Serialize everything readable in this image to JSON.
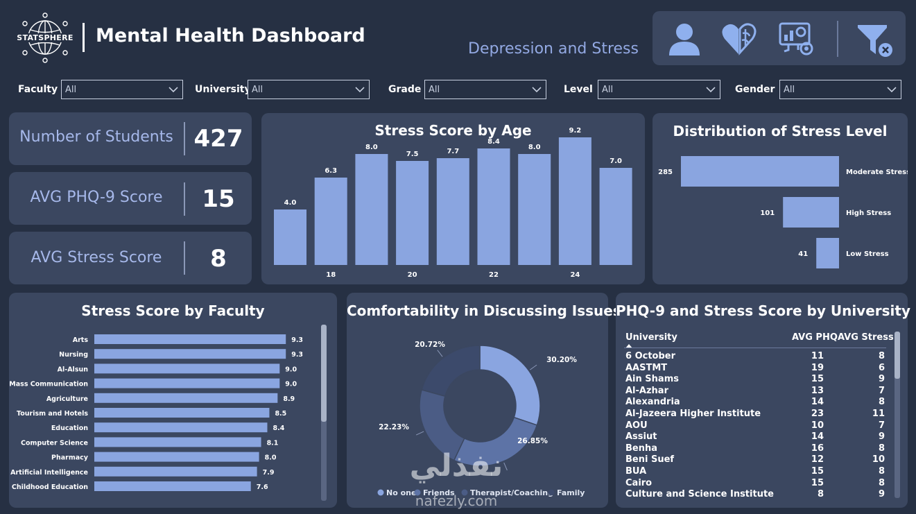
{
  "header": {
    "logo_text": "STATSPHERE",
    "title": "Mental Health Dashboard",
    "subtitle": "Depression and Stress",
    "nav": [
      {
        "icon": "user-icon"
      },
      {
        "icon": "heart-brain-icon"
      },
      {
        "icon": "analytics-monitor-icon"
      },
      {
        "icon": "clear-filter-icon"
      }
    ]
  },
  "filters": [
    {
      "label": "Faculty",
      "value": "All"
    },
    {
      "label": "University",
      "value": "All"
    },
    {
      "label": "Grade",
      "value": "All"
    },
    {
      "label": "Level",
      "value": "All"
    },
    {
      "label": "Gender",
      "value": "All"
    }
  ],
  "kpis": [
    {
      "label": "Number of Students",
      "value": "427"
    },
    {
      "label": "AVG PHQ-9 Score",
      "value": "15"
    },
    {
      "label": "AVG Stress Score",
      "value": "8"
    }
  ],
  "colors": {
    "background": "#263043",
    "card": "#3b4760",
    "bar": "#8aa5e0",
    "accent_text": "#93a9e3",
    "donut": [
      "#8aa5e0",
      "#5d73a6",
      "#4b5c85",
      "#3c4a6b"
    ]
  },
  "chart_data": [
    {
      "type": "bar",
      "title": "Stress Score by Age",
      "categories": [
        "17",
        "18",
        "19",
        "20",
        "21",
        "22",
        "23",
        "24",
        "25"
      ],
      "tick_labels": [
        "",
        "18",
        "",
        "20",
        "",
        "22",
        "",
        "24",
        ""
      ],
      "values": [
        4.0,
        6.3,
        8.0,
        7.5,
        7.7,
        8.4,
        8.0,
        9.2,
        7.0
      ],
      "data_labels": [
        "4.0",
        "6.3",
        "8.0",
        "7.5",
        "7.7",
        "8.4",
        "8.0",
        "9.2",
        "7.0"
      ],
      "ylim": [
        0,
        10
      ]
    },
    {
      "type": "bar",
      "orientation": "horizontal",
      "title": "Distribution of Stress Level",
      "categories": [
        "Moderate Stress",
        "High Stress",
        "Low Stress"
      ],
      "values": [
        285,
        101,
        41
      ],
      "data_labels": [
        "285",
        "101",
        "41"
      ]
    },
    {
      "type": "bar",
      "orientation": "horizontal",
      "title": "Stress Score by Faculty",
      "categories": [
        "Arts",
        "Nursing",
        "Al-Alsun",
        "Mass Communication",
        "Agriculture",
        "Tourism and Hotels",
        "Education",
        "Computer Science",
        "Pharmacy",
        "Artificial Intelligence",
        "Childhood Education"
      ],
      "values": [
        9.3,
        9.3,
        9.0,
        9.0,
        8.9,
        8.5,
        8.4,
        8.1,
        8.0,
        7.9,
        7.6
      ],
      "data_labels": [
        "9.3",
        "9.3",
        "9.0",
        "9.0",
        "8.9",
        "8.5",
        "8.4",
        "8.1",
        "8.0",
        "7.9",
        "7.6"
      ],
      "xlim": [
        0,
        10
      ]
    },
    {
      "type": "pie",
      "title": "Comfortability in Discussing Issues",
      "categories": [
        "No one",
        "Friends",
        "Therapist/Coaching",
        "Family"
      ],
      "values": [
        30.2,
        26.85,
        22.23,
        20.72
      ],
      "data_labels": [
        "30.20%",
        "26.85%",
        "22.23%",
        "20.72%"
      ],
      "legend": "bottom"
    },
    {
      "type": "table",
      "title": "PHQ-9 and Stress Score by University",
      "columns": [
        "University",
        "AVG PHQ",
        "AVG Stress"
      ],
      "rows": [
        [
          "6 October",
          "11",
          "8"
        ],
        [
          "AASTMT",
          "19",
          "6"
        ],
        [
          "Ain Shams",
          "15",
          "9"
        ],
        [
          "Al-Azhar",
          "13",
          "7"
        ],
        [
          "Alexandria",
          "14",
          "8"
        ],
        [
          "Al-Jazeera Higher Institute",
          "23",
          "11"
        ],
        [
          "AOU",
          "10",
          "7"
        ],
        [
          "Assiut",
          "14",
          "9"
        ],
        [
          "Benha",
          "16",
          "8"
        ],
        [
          "Beni Suef",
          "12",
          "10"
        ],
        [
          "BUA",
          "15",
          "8"
        ],
        [
          "Cairo",
          "15",
          "8"
        ],
        [
          "Culture and Science Institute",
          "8",
          "9"
        ]
      ]
    }
  ],
  "watermark": {
    "brand_ar": "نفذلي",
    "brand_en": "nafezly.com"
  }
}
